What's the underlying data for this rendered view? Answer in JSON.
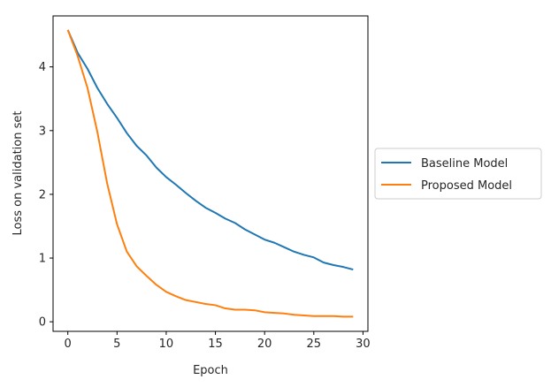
{
  "chart_data": {
    "type": "line",
    "title": "",
    "xlabel": "Epoch",
    "ylabel": "Loss on validation set",
    "xlim": [
      -1.5,
      30.5
    ],
    "ylim": [
      -0.15,
      4.8
    ],
    "xticks": [
      "0",
      "5",
      "10",
      "15",
      "20",
      "25",
      "30"
    ],
    "yticks": [
      "0",
      "1",
      "2",
      "3",
      "4"
    ],
    "grid": false,
    "legend_position": "right-outside",
    "x": [
      0,
      1,
      2,
      3,
      4,
      5,
      6,
      7,
      8,
      9,
      10,
      11,
      12,
      13,
      14,
      15,
      16,
      17,
      18,
      19,
      20,
      21,
      22,
      23,
      24,
      25,
      26,
      27,
      28,
      29
    ],
    "series": [
      {
        "name": "Baseline Model",
        "color": "#1f77b4",
        "values": [
          4.58,
          4.22,
          3.97,
          3.67,
          3.42,
          3.2,
          2.96,
          2.76,
          2.61,
          2.42,
          2.27,
          2.15,
          2.02,
          1.9,
          1.79,
          1.71,
          1.62,
          1.55,
          1.45,
          1.37,
          1.29,
          1.24,
          1.17,
          1.1,
          1.05,
          1.01,
          0.93,
          0.89,
          0.86,
          0.82
        ]
      },
      {
        "name": "Proposed Model",
        "color": "#ff7f0e",
        "values": [
          4.58,
          4.17,
          3.67,
          2.98,
          2.17,
          1.53,
          1.1,
          0.87,
          0.72,
          0.58,
          0.47,
          0.4,
          0.34,
          0.31,
          0.28,
          0.26,
          0.21,
          0.19,
          0.19,
          0.18,
          0.15,
          0.14,
          0.13,
          0.11,
          0.1,
          0.09,
          0.09,
          0.09,
          0.08,
          0.08
        ]
      }
    ]
  }
}
